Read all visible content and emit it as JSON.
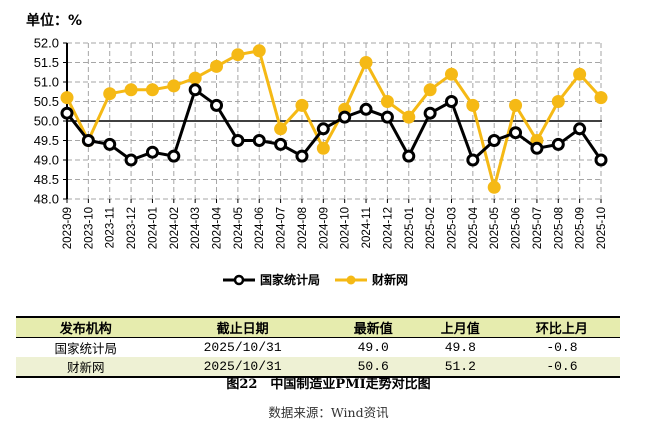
{
  "chart_data": {
    "type": "line",
    "title": "图22 中国制造业PMI走势对比图",
    "unit_label": "单位：%",
    "xlabel": "",
    "ylabel": "%",
    "ylim": [
      48.0,
      52.0
    ],
    "yticks": [
      "52.0",
      "51.5",
      "51.0",
      "50.5",
      "50.0",
      "49.5",
      "49.0",
      "48.5",
      "48.0"
    ],
    "grid": true,
    "reference_line": 50.0,
    "legend_position": "bottom",
    "categories": [
      "2023-09",
      "2023-10",
      "2023-11",
      "2023-12",
      "2024-01",
      "2024-02",
      "2024-03",
      "2024-04",
      "2024-05",
      "2024-06",
      "2024-07",
      "2024-08",
      "2024-09",
      "2024-10",
      "2024-11",
      "2024-12",
      "2025-01",
      "2025-02",
      "2025-03",
      "2025-04",
      "2025-05",
      "2025-06",
      "2025-07",
      "2025-08",
      "2025-09",
      "2025-10"
    ],
    "series": [
      {
        "name": "国家统计局",
        "color": "#000000",
        "marker": "hollow-circle",
        "values": [
          50.2,
          49.5,
          49.4,
          49.0,
          49.2,
          49.1,
          50.8,
          50.4,
          49.5,
          49.5,
          49.4,
          49.1,
          49.8,
          50.1,
          50.3,
          50.1,
          49.1,
          50.2,
          50.5,
          49.0,
          49.5,
          49.7,
          49.3,
          49.4,
          49.8,
          49.0
        ]
      },
      {
        "name": "财新网",
        "color": "#f5b915",
        "marker": "filled-circle",
        "values": [
          50.6,
          49.5,
          50.7,
          50.8,
          50.8,
          50.9,
          51.1,
          51.4,
          51.7,
          51.8,
          49.8,
          50.4,
          49.3,
          50.3,
          51.5,
          50.5,
          50.1,
          50.8,
          51.2,
          50.4,
          48.3,
          50.4,
          49.5,
          50.5,
          51.2,
          50.6
        ]
      }
    ]
  },
  "unit": "单位：%",
  "legend": {
    "items": [
      "国家统计局",
      "财新网"
    ]
  },
  "table": {
    "headers": [
      "发布机构",
      "截止日期",
      "最新值",
      "上月值",
      "环比上月"
    ],
    "rows": [
      [
        "国家统计局",
        "2025/10/31",
        "49.0",
        "49.8",
        "-0.8"
      ],
      [
        "财新网",
        "2025/10/31",
        "50.6",
        "51.2",
        "-0.6"
      ]
    ]
  },
  "caption": "图22　中国制造业PMI走势对比图",
  "source": "数据来源：Wind资讯"
}
